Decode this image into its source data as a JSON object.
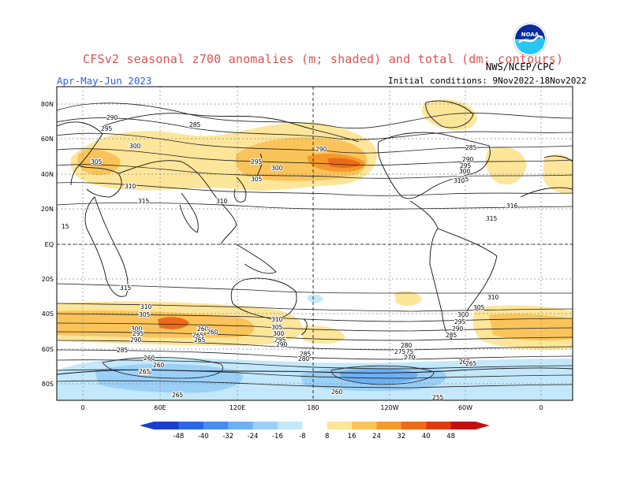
{
  "header": {
    "title": "CFSv2 seasonal z700 anomalies (m; shaded) and total (dm; contours)",
    "agency": "NWS/NCEP/CPC",
    "period": "Apr-May-Jun 2023",
    "initial_conditions": "Initial conditions: 9Nov2022-18Nov2022",
    "logo_text": "NOAA"
  },
  "axes": {
    "lat_labels": [
      "80N",
      "60N",
      "40N",
      "20N",
      "EQ",
      "20S",
      "40S",
      "60S",
      "80S"
    ],
    "lon_labels": [
      "0",
      "60E",
      "120E",
      "180",
      "120W",
      "60W",
      "0"
    ]
  },
  "colorbar": {
    "labels": [
      "-48",
      "-40",
      "-32",
      "-24",
      "-16",
      "-8",
      "8",
      "16",
      "24",
      "32",
      "40",
      "48"
    ],
    "colors": [
      "#1a3fd0",
      "#2b66e6",
      "#4a8cf0",
      "#6fb0f5",
      "#9ad0f8",
      "#c3e8fb",
      "#ffffff",
      "#fde59a",
      "#fbc45a",
      "#f59a2a",
      "#ee6a18",
      "#e03a10",
      "#c01010"
    ]
  },
  "contour_labels": [
    {
      "text": "290"
    },
    {
      "text": "295"
    },
    {
      "text": "300"
    },
    {
      "text": "305"
    },
    {
      "text": "310"
    },
    {
      "text": "315"
    },
    {
      "text": "285"
    },
    {
      "text": "310"
    },
    {
      "text": "295"
    },
    {
      "text": "300"
    },
    {
      "text": "305"
    },
    {
      "text": "290"
    },
    {
      "text": "285"
    },
    {
      "text": "290"
    },
    {
      "text": "295"
    },
    {
      "text": "300"
    },
    {
      "text": "305"
    },
    {
      "text": "310"
    },
    {
      "text": "315"
    },
    {
      "text": "316"
    },
    {
      "text": "15"
    },
    {
      "text": "315"
    },
    {
      "text": "310"
    },
    {
      "text": "305"
    },
    {
      "text": "300"
    },
    {
      "text": "295"
    },
    {
      "text": "290"
    },
    {
      "text": "285"
    },
    {
      "text": "280"
    },
    {
      "text": "275"
    },
    {
      "text": "270"
    },
    {
      "text": "265"
    },
    {
      "text": "260"
    },
    {
      "text": "310"
    },
    {
      "text": "305"
    },
    {
      "text": "300"
    },
    {
      "text": "295"
    },
    {
      "text": "290"
    },
    {
      "text": "285"
    },
    {
      "text": "280"
    },
    {
      "text": "275"
    },
    {
      "text": "270"
    },
    {
      "text": "265"
    },
    {
      "text": "260"
    },
    {
      "text": "310"
    },
    {
      "text": "305"
    },
    {
      "text": "300"
    },
    {
      "text": "295"
    },
    {
      "text": "290"
    },
    {
      "text": "285"
    },
    {
      "text": "265"
    },
    {
      "text": "260"
    },
    {
      "text": "265"
    },
    {
      "text": "265"
    },
    {
      "text": "260"
    },
    {
      "text": "255"
    },
    {
      "text": "265"
    },
    {
      "text": "260"
    },
    {
      "text": "265"
    }
  ]
}
